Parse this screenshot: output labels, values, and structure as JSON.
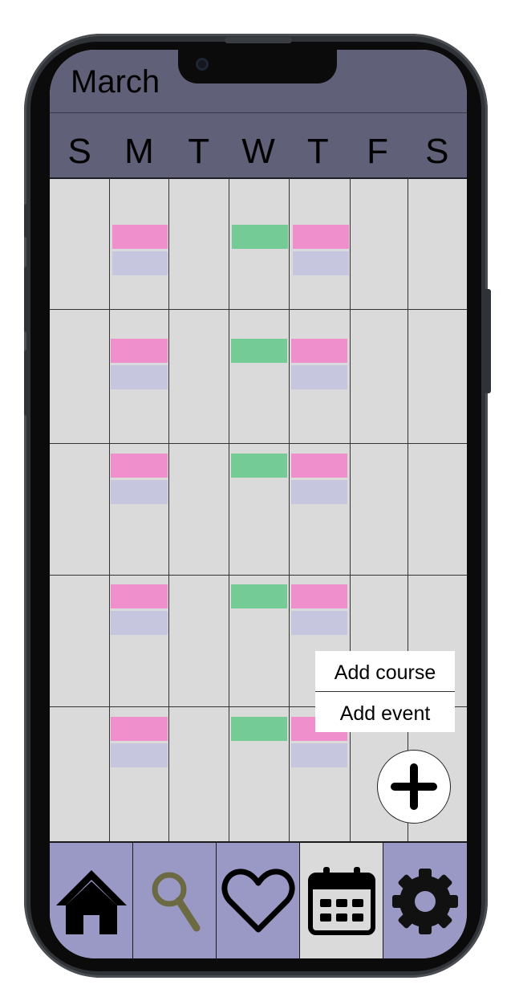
{
  "calendar": {
    "month": "March",
    "weekdays": [
      "S",
      "M",
      "T",
      "W",
      "T",
      "F",
      "S"
    ]
  },
  "menu": {
    "add_course": "Add course",
    "add_event": "Add event"
  },
  "icons": {
    "fab": "plus-icon",
    "nav": [
      "home-icon",
      "search-icon",
      "heart-icon",
      "calendar-icon",
      "gear-icon"
    ]
  },
  "navbar": {
    "active_index": 3
  },
  "colors": {
    "header": "#616079",
    "navbar": "#9a98c4",
    "course_pink": "#ef8fcb",
    "course_lavender": "#c6c6de",
    "event_green": "#75cb95",
    "search_icon": "#6b6a42"
  }
}
